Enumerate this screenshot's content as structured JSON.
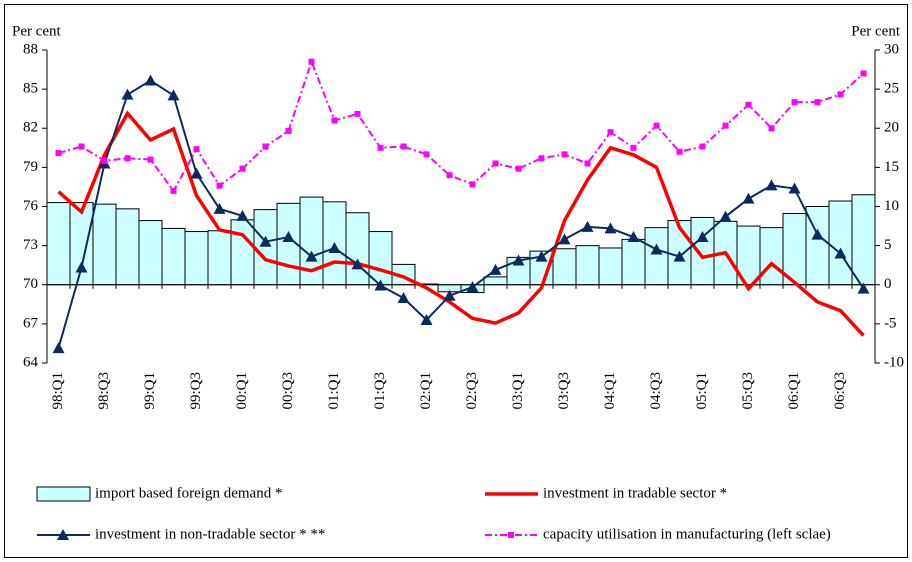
{
  "chart_data": {
    "type": "combo",
    "y_label": "Per cent",
    "y2_label": "Per cent",
    "categories": [
      "98:Q1",
      null,
      "98:Q3",
      null,
      "99:Q1",
      null,
      "99:Q3",
      null,
      "00:Q1",
      null,
      "00:Q3",
      null,
      "01:Q1",
      null,
      "01:Q3",
      null,
      "02:Q1",
      null,
      "02:Q3",
      null,
      "03:Q1",
      null,
      "03:Q3",
      null,
      "04:Q1",
      null,
      "04:Q3",
      null,
      "05:Q1",
      null,
      "05:Q3",
      null,
      "06:Q1",
      null,
      "06:Q3",
      null
    ],
    "ylim": [
      64,
      88
    ],
    "yticks": [
      64,
      67,
      70,
      73,
      76,
      79,
      82,
      85,
      88
    ],
    "y2lim": [
      -10,
      30
    ],
    "y2ticks": [
      -10,
      -5,
      0,
      5,
      10,
      15,
      20,
      25,
      30
    ],
    "series": [
      {
        "name": "import based foreign demand *",
        "type": "bar",
        "axis": "y2",
        "color": "#ccffff",
        "values": [
          10.5,
          10.5,
          10.3,
          9.7,
          8.2,
          7.2,
          6.8,
          6.9,
          8.3,
          9.6,
          10.4,
          11.2,
          10.6,
          9.2,
          6.8,
          2.6,
          0.1,
          -0.9,
          -1.0,
          1.0,
          3.5,
          4.3,
          4.6,
          5.0,
          4.7,
          5.8,
          7.3,
          8.2,
          8.6,
          8.1,
          7.5,
          7.3,
          9.1,
          10.0,
          10.7,
          11.5
        ]
      },
      {
        "name": "investment in tradable sector *",
        "type": "line",
        "axis": "y2",
        "color": "#ff0000",
        "values": [
          11.9,
          9.3,
          16.6,
          21.9,
          18.5,
          19.9,
          11.4,
          7.0,
          6.4,
          3.2,
          2.4,
          1.8,
          2.9,
          2.7,
          1.9,
          1.0,
          -0.4,
          -2.2,
          -4.3,
          -4.9,
          -3.6,
          -0.4,
          8.2,
          13.4,
          17.5,
          16.6,
          15.0,
          7.3,
          3.5,
          4.1,
          -0.5,
          2.7,
          0.3,
          -2.2,
          -3.3,
          -6.5
        ]
      },
      {
        "name": "investment in non-tradable sector *  **",
        "type": "line",
        "axis": "y2",
        "color": "#0d2a5e",
        "marker": "triangle",
        "values": [
          -8.1,
          2.2,
          15.5,
          24.3,
          26.1,
          24.2,
          14.2,
          9.7,
          8.8,
          5.5,
          6.1,
          3.6,
          4.7,
          2.6,
          -0.1,
          -1.7,
          -4.5,
          -1.4,
          -0.3,
          1.9,
          3.1,
          3.6,
          5.8,
          7.4,
          7.2,
          6.1,
          4.5,
          3.6,
          6.1,
          8.7,
          11.0,
          12.7,
          12.3,
          6.4,
          4.0,
          -0.5
        ]
      },
      {
        "name": "capacity utilisation in manufacturing  (left sclae)",
        "type": "line",
        "axis": "y",
        "color": "#ff00ff",
        "marker": "square",
        "dashed": true,
        "values": [
          80.1,
          80.6,
          79.5,
          79.7,
          79.6,
          77.2,
          80.4,
          77.6,
          78.9,
          80.6,
          81.8,
          87.1,
          82.6,
          83.1,
          80.5,
          80.6,
          80.0,
          78.4,
          77.7,
          79.3,
          78.9,
          79.7,
          80.0,
          79.3,
          81.7,
          80.5,
          82.2,
          80.2,
          80.6,
          82.2,
          83.8,
          82.0,
          84.0,
          84.0,
          84.6,
          86.2
        ]
      }
    ]
  }
}
